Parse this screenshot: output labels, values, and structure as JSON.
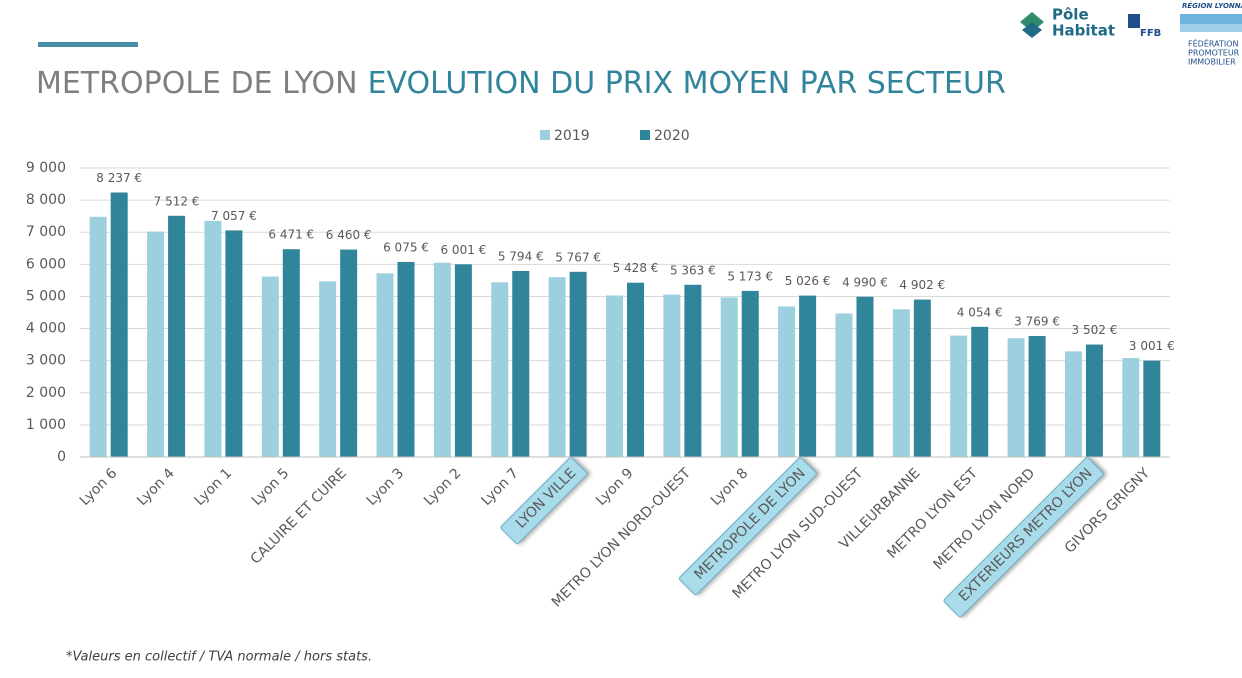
{
  "chart_data": {
    "type": "bar",
    "title_part1": "METROPOLE DE LYON",
    "title_part2": "EVOLUTION DU PRIX MOYEN PAR SECTEUR",
    "categories": [
      "Lyon 6",
      "Lyon 4",
      "Lyon 1",
      "Lyon 5",
      "CALUIRE ET CUIRE",
      "Lyon 3",
      "Lyon 2",
      "Lyon 7",
      "LYON VILLE",
      "Lyon 9",
      "METRO LYON NORD-OUEST",
      "Lyon 8",
      "METROPOLE DE LYON",
      "METRO LYON SUD-OUEST",
      "VILLEURBANNE",
      "METRO LYON EST",
      "METRO LYON NORD",
      "EXTERIEURS METRO LYON",
      "GIVORS GRIGNY"
    ],
    "highlighted_categories": [
      8,
      12,
      17
    ],
    "series": [
      {
        "name": "2019",
        "color": "#9dd0de",
        "values": [
          7480,
          7020,
          7350,
          5620,
          5470,
          5720,
          6050,
          5440,
          5600,
          5030,
          5060,
          4970,
          4690,
          4470,
          4600,
          3780,
          3700,
          3290,
          3080
        ]
      },
      {
        "name": "2020",
        "color": "#31859b",
        "values": [
          8237,
          7512,
          7057,
          6471,
          6460,
          6075,
          6001,
          5794,
          5767,
          5428,
          5363,
          5173,
          5026,
          4990,
          4902,
          4054,
          3769,
          3502,
          3001
        ],
        "value_labels": [
          "8 237 €",
          "7 512 €",
          "7 057 €",
          "6 471 €",
          "6 460 €",
          "6 075 €",
          "6 001 €",
          "5 794 €",
          "5 767 €",
          "5 428 €",
          "5 363 €",
          "5 173 €",
          "5 026 €",
          "4 990 €",
          "4 902 €",
          "4 054 €",
          "3 769 €",
          "3 502 €",
          "3 001 €"
        ]
      }
    ],
    "ylim": [
      0,
      9000
    ],
    "yticks": [
      0,
      {
        "value": 1000,
        "label": "1 000"
      },
      {
        "value": 2000,
        "label": "2 000"
      },
      {
        "value": 3000,
        "label": "3 000"
      },
      {
        "value": 4000,
        "label": "4 000"
      },
      {
        "value": 5000,
        "label": "5 000"
      },
      {
        "value": 6000,
        "label": "6 000"
      },
      {
        "value": 7000,
        "label": "7 000"
      },
      {
        "value": 8000,
        "label": "8 000"
      },
      {
        "value": 9000,
        "label": "9 000"
      }
    ],
    "grid": true,
    "legend": "top",
    "footnote": "*Valeurs en collectif / TVA normale / hors stats."
  },
  "logos": {
    "pole": "Pôle",
    "habitat": "Habitat",
    "ffb": "FFB",
    "region": "RÉGION LYONNA",
    "federation": [
      "FÉDÉRATION",
      "PROMOTEUR",
      "IMMOBILIER"
    ]
  }
}
